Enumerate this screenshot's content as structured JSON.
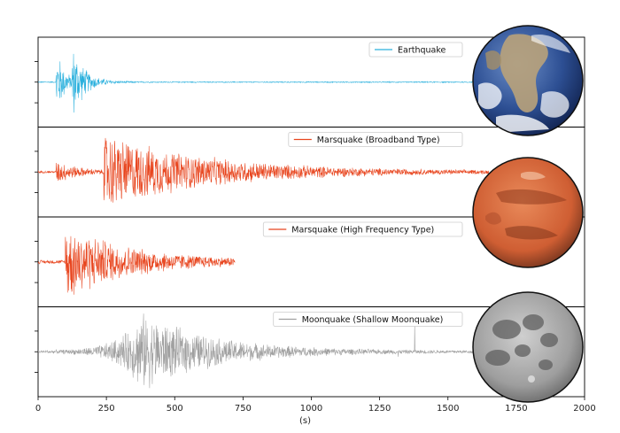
{
  "chart_data": {
    "type": "line",
    "xlabel": "(s)",
    "xlim": [
      0,
      2000
    ],
    "x_ticks": [
      0,
      250,
      500,
      750,
      1000,
      1250,
      1500,
      1750,
      2000
    ],
    "x_tick_labels": [
      "0",
      "250",
      "500",
      "750",
      "1000",
      "1250",
      "1500",
      "1750",
      "2000"
    ],
    "grid": false,
    "legend_placement": "upper-right of each panel",
    "panels": [
      {
        "legend": "Earthquake",
        "color": "#2ab0dd",
        "body": "earth",
        "duration_s": 1650,
        "arrivals": [
          {
            "t": 65,
            "peak": 1.0,
            "decay_s": 30
          },
          {
            "t": 125,
            "peak": 0.9,
            "decay_s": 45
          }
        ],
        "background_level": 0.015
      },
      {
        "legend": "Marsquake (Broadband Type)",
        "color": "#e8451e",
        "body": "mars",
        "duration_s": 1650,
        "arrivals": [
          {
            "t": 65,
            "peak": 0.3,
            "decay_s": 80
          },
          {
            "t": 240,
            "peak": 1.0,
            "decay_s": 380
          }
        ],
        "background_level": 0.03
      },
      {
        "legend": "Marsquake (High Frequency Type)",
        "color": "#e8451e",
        "body": "mars",
        "duration_s": 720,
        "arrivals": [
          {
            "t": 100,
            "peak": 1.0,
            "decay_s": 230
          }
        ],
        "background_level": 0.05
      },
      {
        "legend": "Moonquake (Shallow Moonquake)",
        "color": "#a0a0a0",
        "body": "moon",
        "duration_s": 1650,
        "arrivals": [
          {
            "t": 380,
            "peak": 1.0,
            "rise_s": 240,
            "decay_s": 260
          }
        ],
        "spikes": [
          {
            "t": 1378,
            "peak": 0.65
          },
          {
            "t": 1318,
            "peak": 0.12
          }
        ],
        "background_level": 0.03
      }
    ]
  },
  "colors": {
    "earth_ocean": "#2b4f95",
    "earth_land": "#b9a27a",
    "mars": "#d9673a",
    "moon": "#a5a5a5"
  },
  "icons": {
    "earth": "earth-globe-icon",
    "mars": "mars-globe-icon",
    "moon": "moon-globe-icon"
  }
}
